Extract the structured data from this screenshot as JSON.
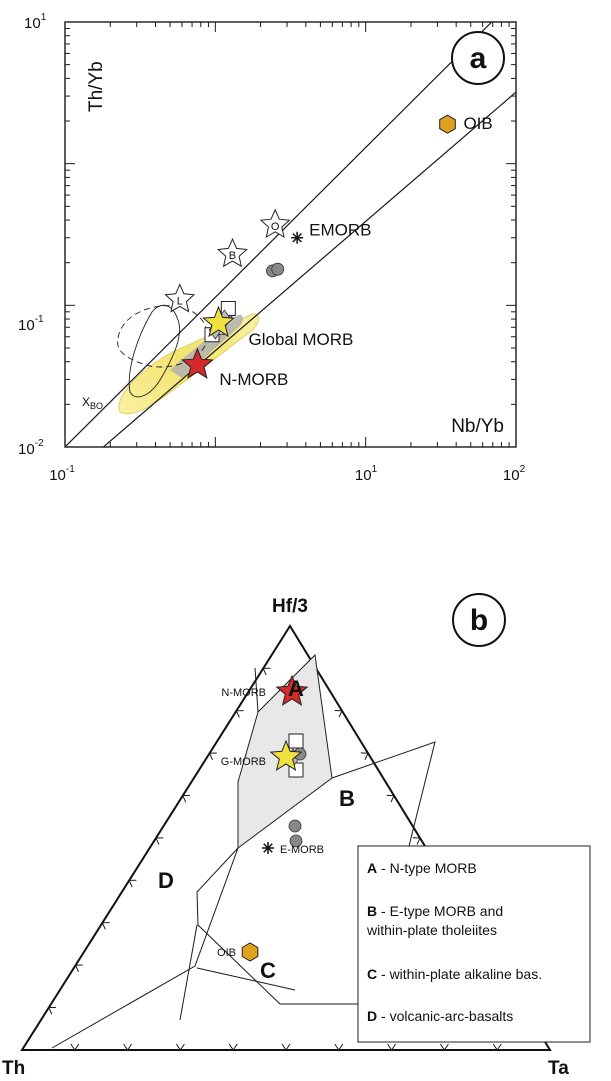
{
  "chart_data": [
    {
      "panel": "a",
      "type": "scatter",
      "scale": "log-log",
      "xlabel": "Nb/Yb",
      "ylabel": "Th/Yb",
      "xlim": [
        0.1,
        100
      ],
      "ylim": [
        0.01,
        10
      ],
      "x_ticks": [
        {
          "base": "10",
          "exp": "-1"
        },
        {
          "base": "10",
          "exp": "1"
        },
        {
          "base": "10",
          "exp": "2"
        }
      ],
      "y_ticks": [
        {
          "base": "10",
          "exp": "-2"
        },
        {
          "base": "10",
          "exp": "-1"
        },
        {
          "base": "10",
          "exp": "1"
        }
      ],
      "array_lines": [
        {
          "points": [
            [
              0.1,
              0.01
            ],
            [
              10,
              1.3
            ]
          ]
        },
        {
          "points": [
            [
              0.18,
              0.01
            ],
            [
              50,
              1.7
            ]
          ]
        }
      ],
      "reference_points": [
        {
          "label": "OIB",
          "x": 35,
          "y": 1.9,
          "marker": "hexagon",
          "color": "#e0a020"
        },
        {
          "label": "EMORB",
          "x": 3.5,
          "y": 0.3,
          "marker": "asterisk",
          "color": "#111111"
        },
        {
          "label": "N-MORB",
          "x": 0.76,
          "y": 0.038,
          "marker": "star",
          "color": "#d42a2a"
        },
        {
          "label": "Global MORB",
          "x": 1.05,
          "y": 0.075,
          "marker": "star",
          "color": "#f0e040"
        },
        {
          "label": "B",
          "x": 1.3,
          "y": 0.23,
          "marker": "star-outline",
          "color": "#ffffff"
        },
        {
          "label": "O",
          "x": 2.5,
          "y": 0.37,
          "marker": "star-outline",
          "color": "#ffffff"
        },
        {
          "label": "L",
          "x": 0.58,
          "y": 0.11,
          "marker": "star-outline",
          "color": "#ffffff"
        }
      ],
      "samples": [
        {
          "marker": "circle",
          "color": "#888888",
          "points": [
            [
              2.4,
              0.175
            ],
            [
              2.6,
              0.18
            ],
            [
              1.18,
              0.086
            ]
          ]
        },
        {
          "marker": "square",
          "color": "#ffffff",
          "points": [
            [
              1.22,
              0.095
            ],
            [
              0.95,
              0.062
            ],
            [
              1.05,
              0.07
            ]
          ]
        },
        {
          "marker": "diamond",
          "color": "#bbbbbb",
          "points": [
            [
              1.0,
              0.067
            ],
            [
              1.15,
              0.08
            ]
          ]
        }
      ],
      "annotations": [
        "a",
        "X",
        "BO"
      ]
    },
    {
      "panel": "b",
      "type": "ternary",
      "apex_labels": {
        "top": "Hf/3",
        "left": "Th",
        "right": "Ta"
      },
      "reference_points": [
        {
          "label": "N-MORB",
          "marker": "star",
          "color": "#d42a2a"
        },
        {
          "label": "G-MORB",
          "marker": "star",
          "color": "#f0e040"
        },
        {
          "label": "E-MORB",
          "marker": "asterisk",
          "color": "#111111"
        },
        {
          "label": "OIB",
          "marker": "hexagon",
          "color": "#e0a020"
        }
      ],
      "field_labels": [
        "A",
        "B",
        "C",
        "D"
      ],
      "legend": [
        {
          "key": "A",
          "text": " - N-type MORB"
        },
        {
          "key": "B",
          "text": " - E-type MORB and"
        },
        {
          "key": "",
          "text": "within-plate tholeiites"
        },
        {
          "key": "C",
          "text": " - within-plate alkaline bas."
        },
        {
          "key": "D",
          "text": " - volcanic-arc-basalts"
        }
      ],
      "panel_letter": "b"
    }
  ]
}
